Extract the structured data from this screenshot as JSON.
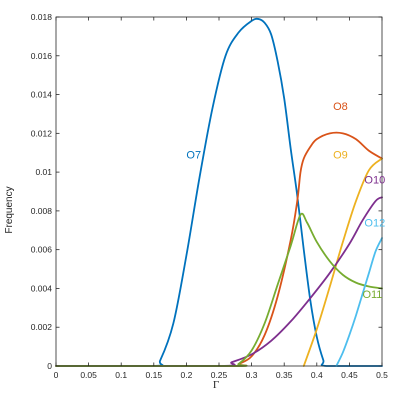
{
  "chart_data": {
    "type": "line",
    "xlabel": "Γ",
    "ylabel": "Frequency",
    "xlim": [
      0,
      0.5
    ],
    "ylim": [
      0,
      0.018
    ],
    "x_ticks": [
      "0",
      "0.05",
      "0.1",
      "0.15",
      "0.2",
      "0.25",
      "0.3",
      "0.35",
      "0.4",
      "0.45",
      "0.5"
    ],
    "y_ticks": [
      "0",
      "0.002",
      "0.004",
      "0.006",
      "0.008",
      "0.01",
      "0.012",
      "0.014",
      "0.016",
      "0.018"
    ],
    "grid": false,
    "series": [
      {
        "name": "O7",
        "color": "#0072BD",
        "points": [
          [
            0,
            0
          ],
          [
            0.15,
            0
          ],
          [
            0.16,
            0.0003
          ],
          [
            0.18,
            0.0022
          ],
          [
            0.2,
            0.0057
          ],
          [
            0.22,
            0.0097
          ],
          [
            0.24,
            0.0133
          ],
          [
            0.26,
            0.016
          ],
          [
            0.28,
            0.0172
          ],
          [
            0.3,
            0.0178
          ],
          [
            0.31,
            0.0179
          ],
          [
            0.32,
            0.0177
          ],
          [
            0.33,
            0.0171
          ],
          [
            0.34,
            0.0157
          ],
          [
            0.35,
            0.0138
          ],
          [
            0.36,
            0.0112
          ],
          [
            0.37,
            0.0088
          ],
          [
            0.38,
            0.006
          ],
          [
            0.39,
            0.0034
          ],
          [
            0.4,
            0.0015
          ],
          [
            0.41,
            0.0003
          ],
          [
            0.415,
            0
          ],
          [
            0.5,
            0
          ]
        ]
      },
      {
        "name": "O8",
        "color": "#D95319",
        "points": [
          [
            0,
            0
          ],
          [
            0.27,
            0
          ],
          [
            0.28,
            0.0001
          ],
          [
            0.3,
            0.0005
          ],
          [
            0.32,
            0.0016
          ],
          [
            0.34,
            0.0036
          ],
          [
            0.36,
            0.0065
          ],
          [
            0.37,
            0.0085
          ],
          [
            0.375,
            0.01
          ],
          [
            0.38,
            0.0107
          ],
          [
            0.39,
            0.0113
          ],
          [
            0.4,
            0.0117
          ],
          [
            0.42,
            0.012
          ],
          [
            0.44,
            0.012
          ],
          [
            0.46,
            0.0117
          ],
          [
            0.48,
            0.0111
          ],
          [
            0.5,
            0.0107
          ]
        ]
      },
      {
        "name": "O9",
        "color": "#EDB120",
        "points": [
          [
            0.38,
            0
          ],
          [
            0.4,
            0.0019
          ],
          [
            0.42,
            0.0041
          ],
          [
            0.44,
            0.0064
          ],
          [
            0.46,
            0.0085
          ],
          [
            0.48,
            0.0101
          ],
          [
            0.5,
            0.0107
          ]
        ]
      },
      {
        "name": "O10",
        "color": "#7E2F8E",
        "points": [
          [
            0,
            0
          ],
          [
            0.25,
            0
          ],
          [
            0.27,
            0.0002
          ],
          [
            0.3,
            0.0006
          ],
          [
            0.33,
            0.0013
          ],
          [
            0.36,
            0.0023
          ],
          [
            0.39,
            0.0035
          ],
          [
            0.42,
            0.0048
          ],
          [
            0.45,
            0.0063
          ],
          [
            0.47,
            0.0075
          ],
          [
            0.49,
            0.0085
          ],
          [
            0.5,
            0.0087
          ]
        ]
      },
      {
        "name": "O11",
        "color": "#77AC30",
        "points": [
          [
            0,
            0
          ],
          [
            0.27,
            0
          ],
          [
            0.28,
            0.0001
          ],
          [
            0.3,
            0.0008
          ],
          [
            0.32,
            0.0022
          ],
          [
            0.34,
            0.0042
          ],
          [
            0.36,
            0.0062
          ],
          [
            0.375,
            0.0078
          ],
          [
            0.385,
            0.0074
          ],
          [
            0.4,
            0.0064
          ],
          [
            0.42,
            0.0054
          ],
          [
            0.44,
            0.0047
          ],
          [
            0.46,
            0.0043
          ],
          [
            0.48,
            0.0041
          ],
          [
            0.5,
            0.004
          ]
        ]
      },
      {
        "name": "O12",
        "color": "#4DBEEE",
        "points": [
          [
            0.43,
            0
          ],
          [
            0.44,
            0.0007
          ],
          [
            0.45,
            0.0016
          ],
          [
            0.46,
            0.0026
          ],
          [
            0.47,
            0.0037
          ],
          [
            0.48,
            0.0048
          ],
          [
            0.49,
            0.0059
          ],
          [
            0.5,
            0.0066
          ]
        ]
      }
    ]
  }
}
